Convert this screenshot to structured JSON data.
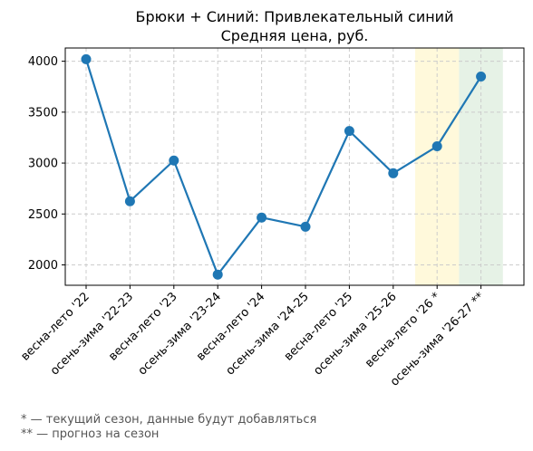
{
  "chart_data": {
    "type": "line",
    "title": "Брюки + Синий: Привлекательный синий",
    "subtitle": "Средняя цена, руб.",
    "xlabel": "",
    "ylabel": "",
    "categories": [
      "весна-лето '22",
      "осень-зима '22-23",
      "весна-лето '23",
      "осень-зима '23-24",
      "весна-лето '24",
      "осень-зима '24-25",
      "весна-лето '25",
      "осень-зима '25-26",
      "весна-лето '26 *",
      "осень-зима '26-27 **"
    ],
    "series": [
      {
        "values": [
          4020,
          2625,
          3025,
          1905,
          2465,
          2375,
          3315,
          2900,
          3165,
          3850
        ]
      }
    ],
    "yticks": [
      2000,
      2500,
      3000,
      3500,
      4000
    ],
    "ylim": [
      1800,
      4130
    ],
    "grid": true,
    "highlights": [
      {
        "category_index": 8,
        "color": "#fff9db"
      },
      {
        "category_index": 9,
        "color": "#e6f2e6"
      }
    ],
    "line_color": "#1f77b4"
  },
  "footnotes": {
    "current": "* — текущий сезон, данные будут добавляться",
    "forecast": "** — прогноз на сезон"
  }
}
